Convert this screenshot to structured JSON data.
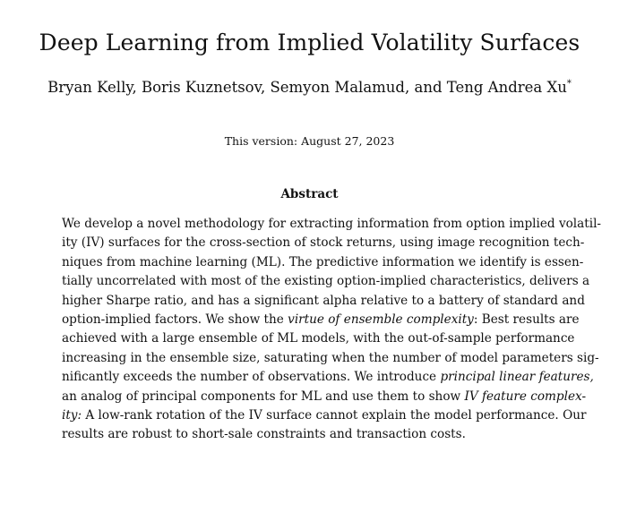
{
  "paper": {
    "title": "Deep Learning from Implied Volatility Surfaces",
    "authors": "Bryan Kelly, Boris Kuznetsov, Semyon Malamud, and Teng Andrea Xu",
    "author_mark": "*",
    "version": "This version: August 27, 2023"
  },
  "abstract": {
    "heading": "Abstract",
    "lines": [
      {
        "text": "We develop a novel methodology for extracting information from option implied volatil-"
      },
      {
        "text": "ity (IV) surfaces for the cross-section of stock returns, using image recognition tech-"
      },
      {
        "text": "niques from machine learning (ML). The predictive information we identify is essen-"
      },
      {
        "text": "tially uncorrelated with most of the existing option-implied characteristics, delivers a"
      },
      {
        "text": "higher Sharpe ratio, and has a significant alpha relative to a battery of standard and"
      },
      {
        "pre": "option-implied factors.  We show the ",
        "em": "virtue of ensemble complexity",
        "post": ": Best results are"
      },
      {
        "text": "achieved with a large ensemble of ML models, with the out-of-sample performance"
      },
      {
        "text": "increasing in the ensemble size, saturating when the number of model parameters sig-"
      },
      {
        "text": "nificantly exceeds the number of observations. We introduce"
      },
      {
        "pre": "an analog of principal components for ML and use them to show ",
        "em": "IV feature complex-",
        "post": ""
      },
      {
        "pre": "",
        "em": "ity:",
        "post": " A low-rank rotation of the IV surface cannot explain the model performance. Our"
      },
      {
        "text": "results are robust to short-sale constraints and transaction costs."
      }
    ],
    "line9_em": "principal linear features,"
  }
}
